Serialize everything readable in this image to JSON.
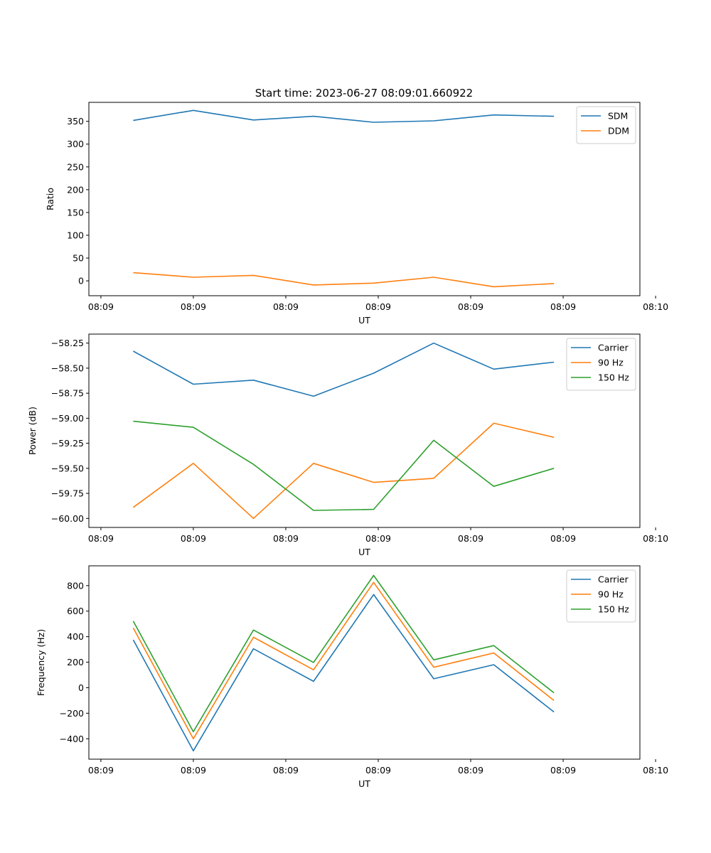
{
  "figure_title": "Start time: 2023-06-27 08:09:01.660922",
  "colors": {
    "blue": "#1f77b4",
    "orange": "#ff7f0e",
    "green": "#2ca02c"
  },
  "chart_data": [
    {
      "type": "line",
      "title": "Start time: 2023-06-27 08:09:01.660922",
      "xlabel": "UT",
      "ylabel": "Ratio",
      "xlim": [
        -0.48,
        5.48
      ],
      "ylim": [
        -32.6,
        391.6
      ],
      "x_tick_values": [
        -0.35,
        0.65,
        1.65,
        2.65,
        3.65,
        4.65,
        5.65
      ],
      "x_tick_labels": [
        "08:09",
        "08:09",
        "08:09",
        "08:09",
        "08:09",
        "08:09",
        "08:10"
      ],
      "y_ticks": [
        0,
        50,
        100,
        150,
        200,
        250,
        300,
        350
      ],
      "legend": "top-right",
      "grid": false,
      "x": [
        0,
        0.65,
        1.3,
        1.95,
        2.6,
        3.25,
        3.9,
        4.55
      ],
      "series": [
        {
          "name": "SDM",
          "color": "#1f77b4",
          "values": [
            352,
            374,
            353,
            361,
            348,
            351,
            364,
            361
          ]
        },
        {
          "name": "DDM",
          "color": "#ff7f0e",
          "values": [
            18,
            8,
            12,
            -9,
            -5,
            8,
            -13,
            -6
          ]
        }
      ]
    },
    {
      "type": "line",
      "title": "",
      "xlabel": "UT",
      "ylabel": "Power (dB)",
      "xlim": [
        -0.48,
        5.48
      ],
      "ylim": [
        -60.09,
        -58.16
      ],
      "x_tick_values": [
        -0.35,
        0.65,
        1.65,
        2.65,
        3.65,
        4.65,
        5.65
      ],
      "x_tick_labels": [
        "08:09",
        "08:09",
        "08:09",
        "08:09",
        "08:09",
        "08:09",
        "08:10"
      ],
      "y_ticks": [
        -60.0,
        -59.75,
        -59.5,
        -59.25,
        -59.0,
        -58.75,
        -58.5,
        -58.25
      ],
      "y_tick_labels": [
        "−60.00",
        "−59.75",
        "−59.50",
        "−59.25",
        "−59.00",
        "−58.75",
        "−58.50",
        "−58.25"
      ],
      "legend": "top-right",
      "grid": false,
      "x": [
        0,
        0.65,
        1.3,
        1.95,
        2.6,
        3.25,
        3.9,
        4.55
      ],
      "series": [
        {
          "name": "Carrier",
          "color": "#1f77b4",
          "values": [
            -58.33,
            -58.66,
            -58.62,
            -58.78,
            -58.55,
            -58.25,
            -58.51,
            -58.44
          ]
        },
        {
          "name": "90 Hz",
          "color": "#ff7f0e",
          "values": [
            -59.89,
            -59.45,
            -60.0,
            -59.45,
            -59.64,
            -59.6,
            -59.05,
            -59.19
          ]
        },
        {
          "name": "150 Hz",
          "color": "#2ca02c",
          "values": [
            -59.03,
            -59.09,
            -59.46,
            -59.92,
            -59.91,
            -59.22,
            -59.68,
            -59.5
          ]
        }
      ]
    },
    {
      "type": "line",
      "title": "",
      "xlabel": "UT",
      "ylabel": "Frequency (Hz)",
      "xlim": [
        -0.48,
        5.48
      ],
      "ylim": [
        -560,
        955
      ],
      "x_tick_values": [
        -0.35,
        0.65,
        1.65,
        2.65,
        3.65,
        4.65,
        5.65
      ],
      "x_tick_labels": [
        "08:09",
        "08:09",
        "08:09",
        "08:09",
        "08:09",
        "08:09",
        "08:10"
      ],
      "y_ticks": [
        -400,
        -200,
        0,
        200,
        400,
        600,
        800
      ],
      "y_tick_labels": [
        "−400",
        "−200",
        "0",
        "200",
        "400",
        "600",
        "800"
      ],
      "legend": "top-right",
      "grid": false,
      "x": [
        0,
        0.65,
        1.3,
        1.95,
        2.6,
        3.25,
        3.9,
        4.55
      ],
      "series": [
        {
          "name": "Carrier",
          "color": "#1f77b4",
          "values": [
            375,
            -495,
            305,
            50,
            730,
            70,
            180,
            -190
          ]
        },
        {
          "name": "90 Hz",
          "color": "#ff7f0e",
          "values": [
            468,
            -400,
            395,
            140,
            825,
            160,
            272,
            -100
          ]
        },
        {
          "name": "150 Hz",
          "color": "#2ca02c",
          "values": [
            522,
            -345,
            452,
            198,
            880,
            218,
            330,
            -40
          ]
        }
      ]
    }
  ]
}
